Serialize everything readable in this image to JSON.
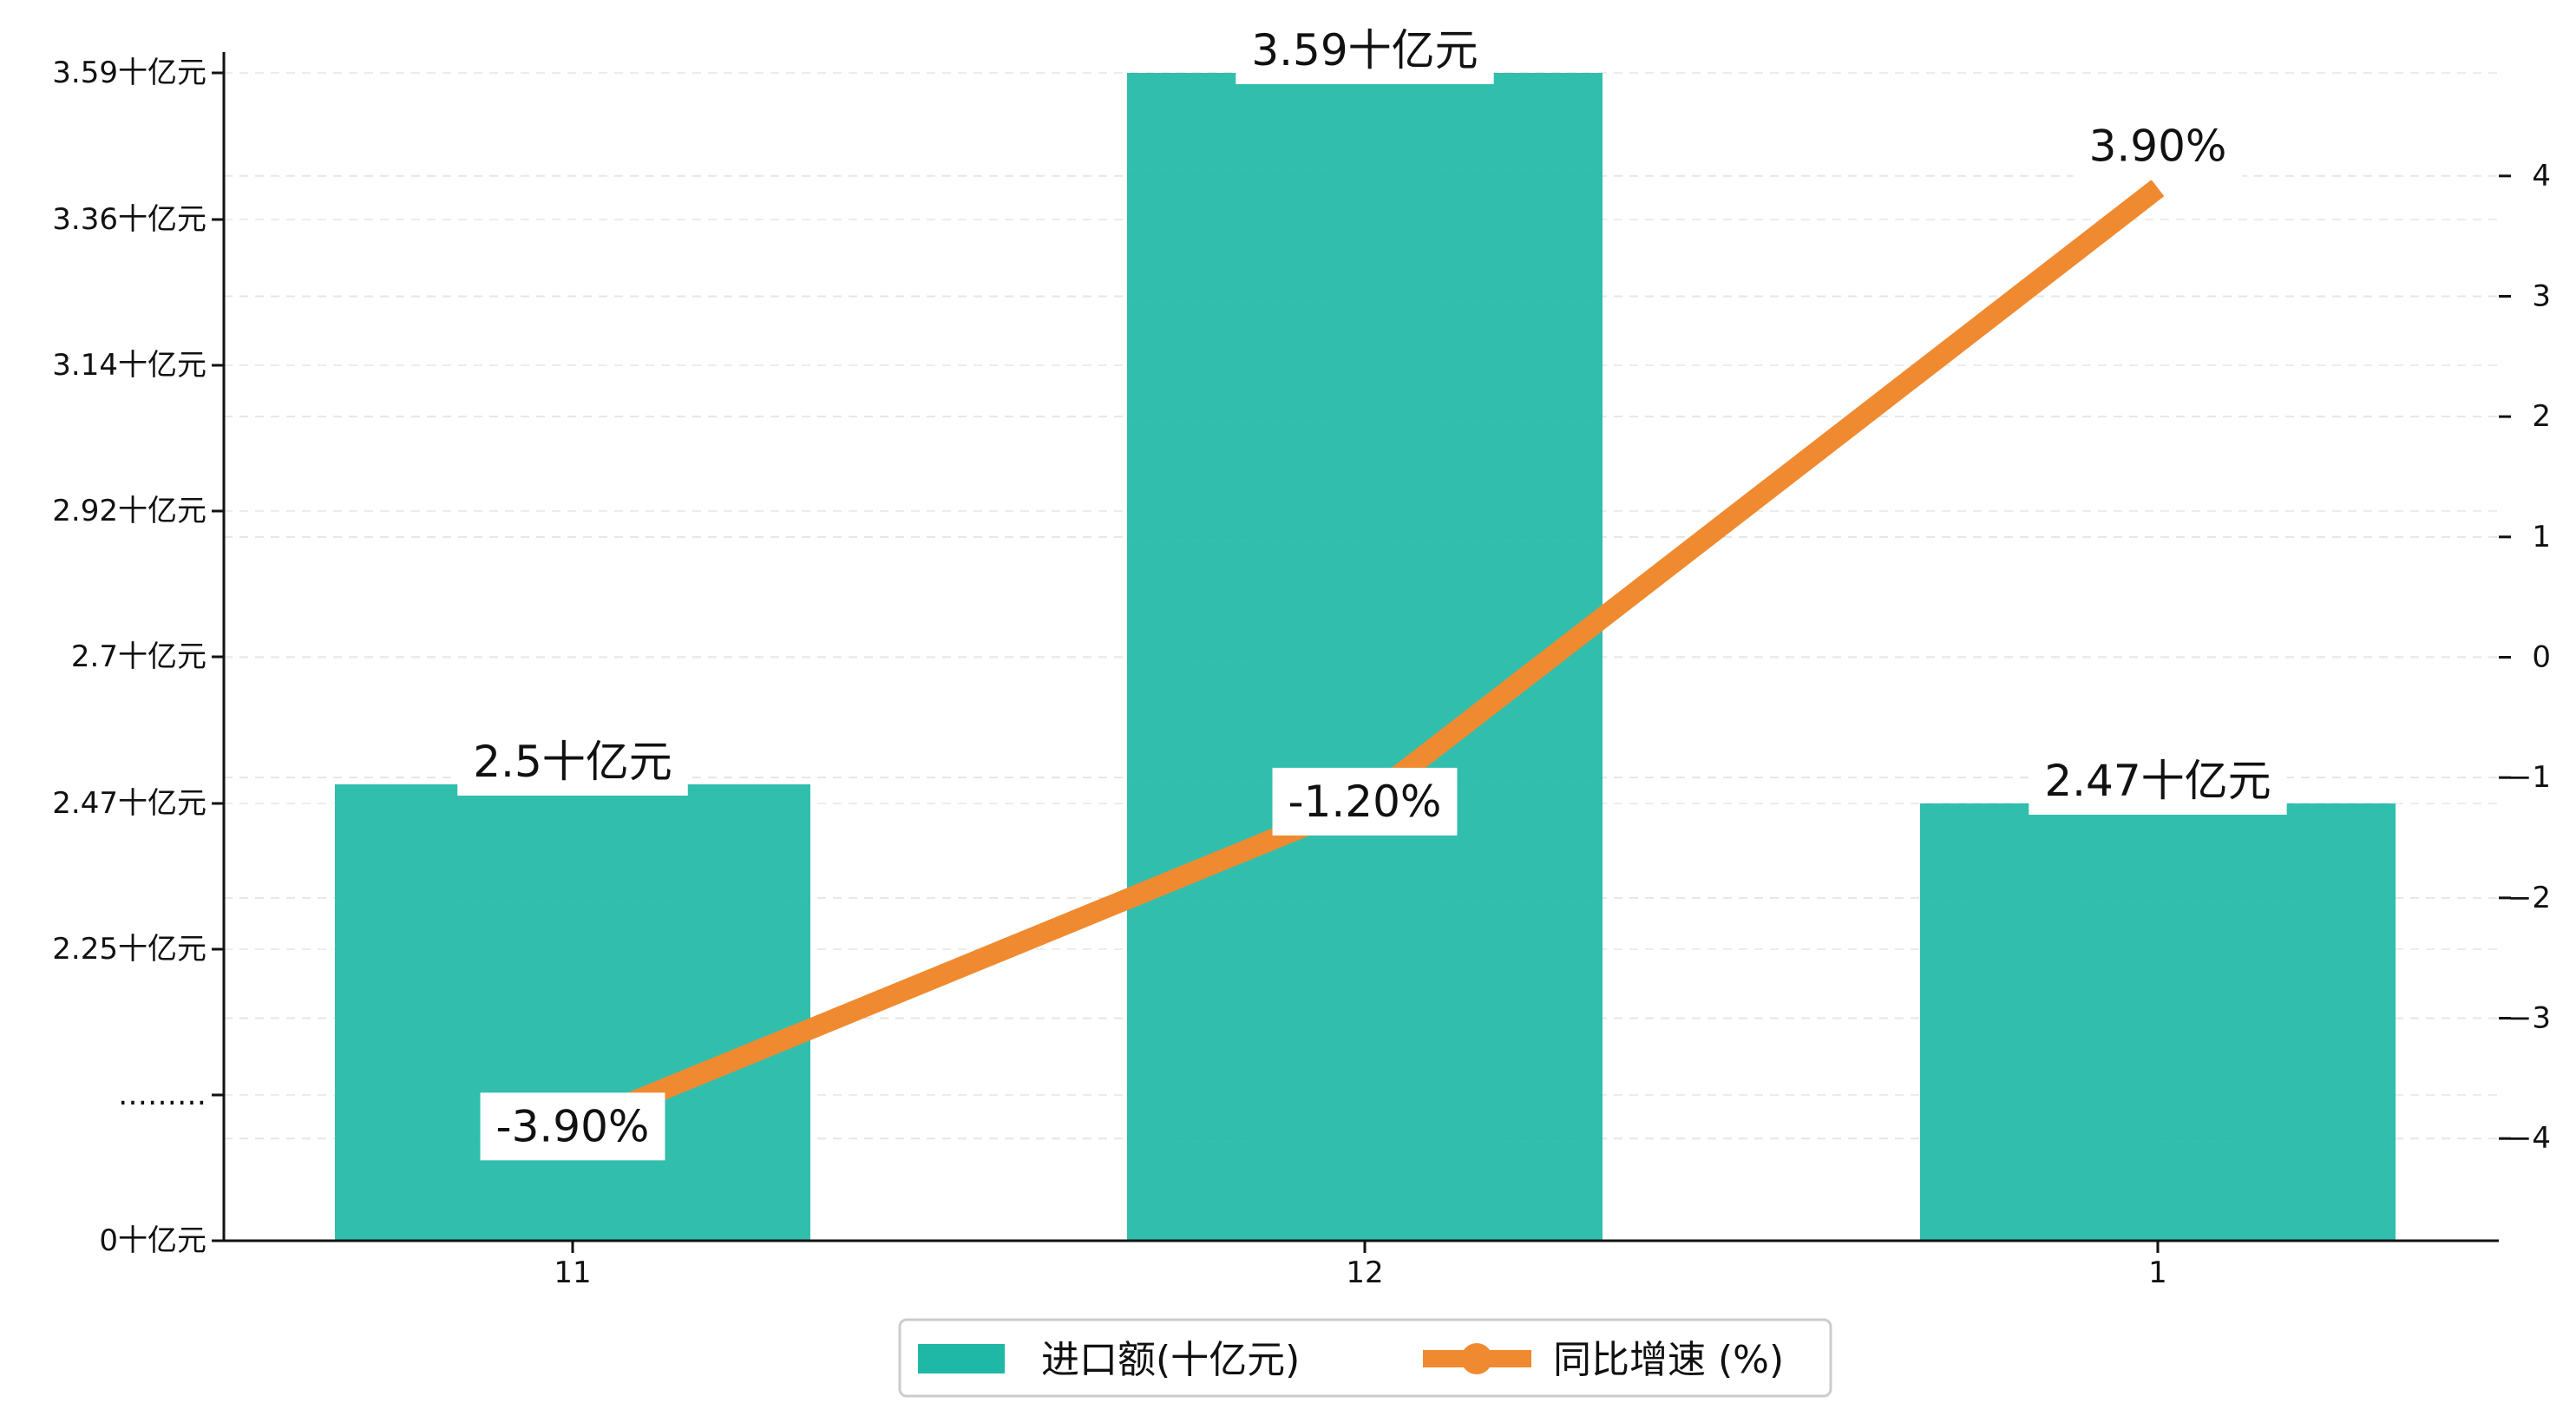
{
  "chart_data": {
    "type": "bar",
    "categories": [
      "11",
      "12",
      "1"
    ],
    "series": [
      {
        "name": "进口额(十亿元)",
        "type": "bar",
        "axis": "left",
        "values": [
          2.5,
          3.59,
          2.47
        ],
        "data_labels": [
          "2.5十亿元",
          "3.59十亿元",
          "2.47十亿元"
        ]
      },
      {
        "name": "同比增速 (%)",
        "type": "line",
        "axis": "right",
        "values": [
          -3.9,
          -1.2,
          3.9
        ],
        "data_labels": [
          "-3.90%",
          "-1.20%",
          "3.90%"
        ]
      }
    ],
    "left_axis": {
      "ticks": [
        0,
        2.03,
        2.25,
        2.47,
        2.7,
        2.92,
        3.14,
        3.36,
        3.59
      ],
      "tick_labels": [
        "0十亿元",
        "………",
        "2.25十亿元",
        "2.47十亿元",
        "2.7十亿元",
        "2.92十亿元",
        "3.14十亿元",
        "3.36十亿元",
        "3.59十亿元"
      ],
      "broken_axis": true
    },
    "right_axis": {
      "ylim": [
        -4.9,
        4.9
      ],
      "ticks": [
        -4,
        -3,
        -2,
        -1,
        0,
        1,
        2,
        3,
        4
      ],
      "tick_labels": [
        "−4",
        "−3",
        "−2",
        "−1",
        "0",
        "1",
        "2",
        "3",
        "4"
      ]
    },
    "grid": true,
    "legend_position": "bottom-center",
    "colors": {
      "bar": "#1fb8a6",
      "line": "#f08a30",
      "label_bg": "#ffffff"
    }
  }
}
